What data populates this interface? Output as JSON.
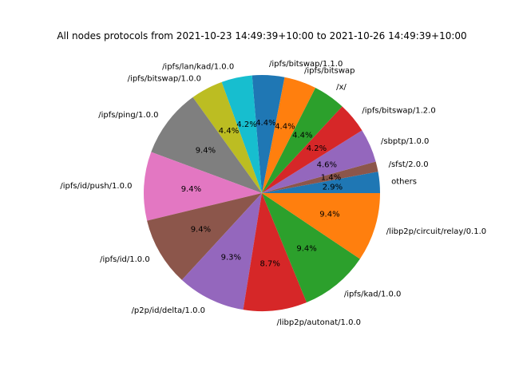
{
  "chart_data": {
    "type": "pie",
    "title": "All nodes protocols from 2021-10-23 14:49:39+10:00 to 2021-10-26 14:49:39+10:00",
    "slices": [
      {
        "label": "others",
        "value": 2.9,
        "pct_label": "2.9%",
        "color": "#1f77b4"
      },
      {
        "label": "/sfst/2.0.0",
        "value": 1.4,
        "pct_label": "1.4%",
        "color": "#8c564b"
      },
      {
        "label": "/sbptp/1.0.0",
        "value": 4.6,
        "pct_label": "4.6%",
        "color": "#9467bd"
      },
      {
        "label": "/ipfs/bitswap/1.2.0",
        "value": 4.2,
        "pct_label": "4.2%",
        "color": "#d62728"
      },
      {
        "label": "/x/",
        "value": 4.4,
        "pct_label": "4.4%",
        "color": "#2ca02c"
      },
      {
        "label": "/ipfs/bitswap",
        "value": 4.4,
        "pct_label": "4.4%",
        "color": "#ff7f0e"
      },
      {
        "label": "/ipfs/bitswap/1.1.0",
        "value": 4.4,
        "pct_label": "4.4%",
        "color": "#1f77b4"
      },
      {
        "label": "/ipfs/lan/kad/1.0.0",
        "value": 4.2,
        "pct_label": "4.2%",
        "color": "#17becf"
      },
      {
        "label": "/ipfs/bitswap/1.0.0",
        "value": 4.4,
        "pct_label": "4.4%",
        "color": "#bcbd22"
      },
      {
        "label": "/ipfs/ping/1.0.0",
        "value": 9.4,
        "pct_label": "9.4%",
        "color": "#7f7f7f"
      },
      {
        "label": "/ipfs/id/push/1.0.0",
        "value": 9.4,
        "pct_label": "9.4%",
        "color": "#e377c2"
      },
      {
        "label": "/ipfs/id/1.0.0",
        "value": 9.4,
        "pct_label": "9.4%",
        "color": "#8c564b"
      },
      {
        "label": "/p2p/id/delta/1.0.0",
        "value": 9.3,
        "pct_label": "9.3%",
        "color": "#9467bd"
      },
      {
        "label": "/libp2p/autonat/1.0.0",
        "value": 8.7,
        "pct_label": "8.7%",
        "color": "#d62728"
      },
      {
        "label": "/ipfs/kad/1.0.0",
        "value": 9.4,
        "pct_label": "9.4%",
        "color": "#2ca02c"
      },
      {
        "label": "/libp2p/circuit/relay/0.1.0",
        "value": 9.4,
        "pct_label": "9.4%",
        "color": "#ff7f0e"
      }
    ],
    "start_angle_deg": 0,
    "direction": "counterclockwise"
  }
}
